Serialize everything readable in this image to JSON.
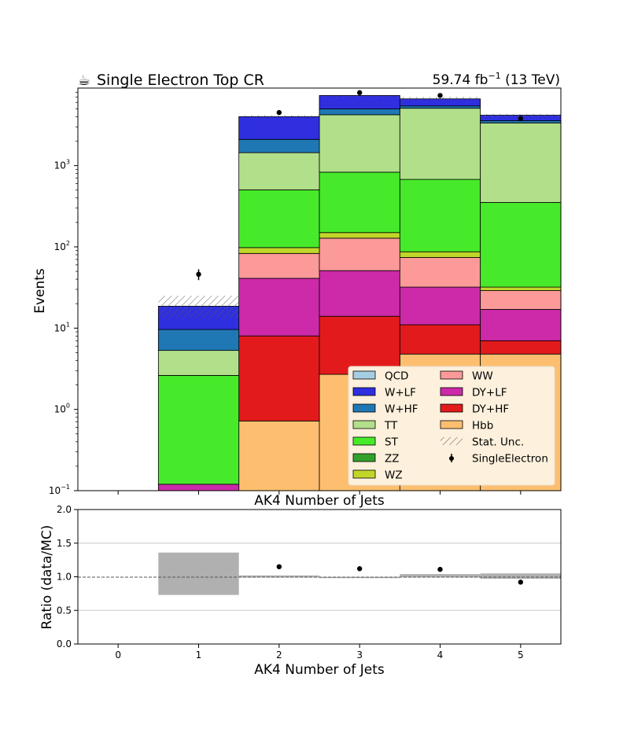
{
  "chart_data": [
    {
      "type": "bar",
      "title": "Single Electron Top CR",
      "title_icon": "coffee-cup-icon",
      "lumi_label": "59.74 fb",
      "lumi_exponent": "−1",
      "energy_label": "(13 TeV)",
      "xlabel": "AK4 Number of Jets",
      "ylabel": "Events",
      "yscale": "log",
      "ylim": [
        0.1,
        9000
      ],
      "xlim": [
        -0.5,
        5.5
      ],
      "stacked": true,
      "y_ticks": [
        {
          "base": "10",
          "exp": "−1",
          "value": 0.1
        },
        {
          "base": "10",
          "exp": "0",
          "value": 1
        },
        {
          "base": "10",
          "exp": "1",
          "value": 10
        },
        {
          "base": "10",
          "exp": "2",
          "value": 100
        },
        {
          "base": "10",
          "exp": "3",
          "value": 1000
        }
      ],
      "categories": [
        0,
        1,
        2,
        3,
        4,
        5
      ],
      "series": [
        {
          "name": "Hbb",
          "color": "#fdbf6f",
          "values": [
            0,
            0,
            0.72,
            2.7,
            4.8,
            4.8
          ]
        },
        {
          "name": "DY+HF",
          "color": "#e31a1c",
          "values": [
            0,
            0,
            7.3,
            11.3,
            6.2,
            2.2
          ]
        },
        {
          "name": "DY+LF",
          "color": "#cc2aa8",
          "values": [
            0,
            0.12,
            33.0,
            37.0,
            21.0,
            10.0
          ]
        },
        {
          "name": "WW",
          "color": "#fb9a99",
          "values": [
            0,
            0,
            42.0,
            77.0,
            42.0,
            12.0
          ]
        },
        {
          "name": "WZ",
          "color": "#c2d62a",
          "values": [
            0,
            0,
            15.0,
            22.0,
            13.0,
            3.0
          ]
        },
        {
          "name": "ZZ",
          "color": "#33a02c",
          "values": [
            0,
            0,
            0,
            0,
            0,
            0
          ]
        },
        {
          "name": "ST",
          "color": "#47ea2a",
          "values": [
            0,
            2.5,
            405.0,
            680.0,
            590.0,
            320.0
          ]
        },
        {
          "name": "TT",
          "color": "#b2df8a",
          "values": [
            0,
            2.7,
            940.0,
            3400.0,
            4400.0,
            3000.0
          ]
        },
        {
          "name": "W+HF",
          "color": "#1f78b4",
          "values": [
            0,
            4.3,
            660.0,
            760.0,
            350.0,
            220.0
          ]
        },
        {
          "name": "W+LF",
          "color": "#2f2fe0",
          "values": [
            0,
            9.0,
            1900.0,
            2300.0,
            1200.0,
            600.0
          ]
        },
        {
          "name": "QCD",
          "color": "#a6cee3",
          "values": [
            0,
            0,
            0,
            0,
            0,
            0
          ]
        }
      ],
      "stat_unc": {
        "name": "Stat. Unc.",
        "low": [
          0,
          13.5,
          3950,
          6850,
          6550,
          3950
        ],
        "high": [
          0,
          25.0,
          4150,
          7150,
          7000,
          4300
        ]
      },
      "data_points": {
        "name": "SingleElectron",
        "x": [
          1,
          2,
          3,
          4,
          5
        ],
        "y": [
          46,
          4500,
          7900,
          7300,
          3800
        ],
        "err": [
          7,
          67,
          89,
          85,
          62
        ]
      },
      "legend": {
        "placement": "lower-right",
        "col1": [
          "QCD",
          "W+LF",
          "W+HF",
          "TT",
          "ST",
          "ZZ",
          "WZ"
        ],
        "col2": [
          "WW",
          "DY+LF",
          "DY+HF",
          "Hbb",
          "Stat. Unc.",
          "SingleElectron"
        ]
      }
    },
    {
      "type": "scatter",
      "xlabel": "AK4 Number of Jets",
      "top_axis_label": "AK4 Number of Jets",
      "ylabel": "Ratio (data/MC)",
      "ylim": [
        0.0,
        2.0
      ],
      "xlim": [
        -0.5,
        5.5
      ],
      "grid": true,
      "reference_line": 1.0,
      "y_ticks": [
        "0.0",
        "0.5",
        "1.0",
        "1.5",
        "2.0"
      ],
      "x_ticks": [
        "0",
        "1",
        "2",
        "3",
        "4",
        "5"
      ],
      "x": [
        2,
        3,
        4,
        5
      ],
      "y": [
        1.15,
        1.12,
        1.11,
        0.92
      ],
      "unc_band": {
        "low": [
          null,
          0.73,
          0.99,
          0.98,
          0.99,
          0.97
        ],
        "high": [
          null,
          1.36,
          1.02,
          1.0,
          1.04,
          1.05
        ]
      }
    }
  ]
}
